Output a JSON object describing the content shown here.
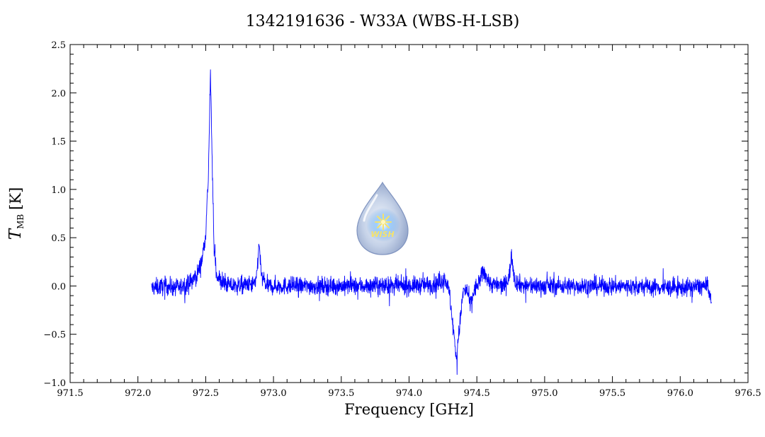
{
  "chart_data": {
    "type": "line",
    "title": "1342191636 - W33A (WBS-H-LSB)",
    "xlabel": "Frequency [GHz]",
    "ylabel": {
      "symbol": "T",
      "subscript": "MB",
      "unit": "[K]"
    },
    "xlim": [
      971.5,
      976.5
    ],
    "ylim": [
      -1.0,
      2.5
    ],
    "xticks": [
      971.5,
      972.0,
      972.5,
      973.0,
      973.5,
      974.0,
      974.5,
      975.0,
      975.5,
      976.0,
      976.5
    ],
    "xtick_labels": [
      "971.5",
      "972.0",
      "972.5",
      "973.0",
      "973.5",
      "974.0",
      "974.5",
      "975.0",
      "975.5",
      "976.0",
      "976.5"
    ],
    "yticks": [
      -1.0,
      -0.5,
      0.0,
      0.5,
      1.0,
      1.5,
      2.0,
      2.5
    ],
    "ytick_labels": [
      "−1.0",
      "−0.5",
      "0.0",
      "0.5",
      "1.0",
      "1.5",
      "2.0",
      "2.5"
    ],
    "grid": false,
    "color": "#0000ff",
    "series": [
      {
        "x": [
          972.1,
          972.2,
          972.3,
          972.38,
          972.43,
          972.47,
          972.5,
          972.52,
          972.535,
          972.545,
          972.56,
          972.58,
          972.62,
          972.7,
          972.8,
          972.87,
          972.895,
          972.91,
          972.95,
          973.0,
          973.5,
          974.0,
          974.2,
          974.27,
          974.3,
          974.33,
          974.35,
          974.37,
          974.4,
          974.43,
          974.45,
          974.48,
          974.52,
          974.55,
          974.6,
          974.7,
          974.74,
          974.755,
          974.78,
          974.85,
          975.0,
          975.5,
          976.0,
          976.2,
          976.23
        ],
        "y": [
          -0.02,
          0.0,
          -0.02,
          0.03,
          0.1,
          0.25,
          0.55,
          1.15,
          2.2,
          1.5,
          0.45,
          0.12,
          0.03,
          0.0,
          0.01,
          0.02,
          0.45,
          0.1,
          0.0,
          0.0,
          0.0,
          0.0,
          0.02,
          0.08,
          -0.1,
          -0.5,
          -0.75,
          -0.45,
          -0.05,
          -0.05,
          -0.2,
          -0.05,
          0.05,
          0.15,
          0.02,
          0.0,
          0.1,
          0.35,
          0.05,
          0.0,
          0.0,
          0.0,
          -0.02,
          0.0,
          -0.18
        ]
      }
    ]
  },
  "watermark": {
    "text": "WISH"
  }
}
